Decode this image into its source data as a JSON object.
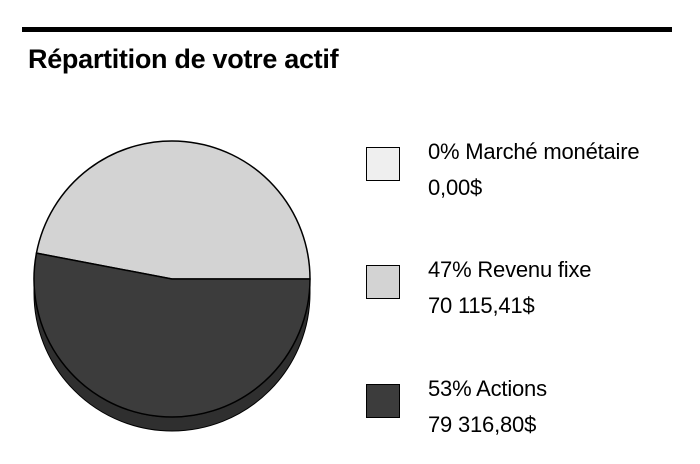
{
  "title": "Répartition de votre actif",
  "colors": {
    "money_market": "#efefef",
    "fixed_income": "#d3d3d3",
    "equities": "#3c3c3c",
    "pie_edge": "#000000"
  },
  "chart_data": {
    "type": "pie",
    "title": "Répartition de votre actif",
    "legend_placement": "right",
    "slices": [
      {
        "label": "0% Marché monétaire",
        "percent": 0,
        "amount": "0,00$",
        "color": "#efefef"
      },
      {
        "label": "47% Revenu fixe",
        "percent": 47,
        "amount": "70 115,41$",
        "color": "#d3d3d3"
      },
      {
        "label": "53% Actions",
        "percent": 53,
        "amount": "79 316,80$",
        "color": "#3c3c3c"
      }
    ]
  }
}
